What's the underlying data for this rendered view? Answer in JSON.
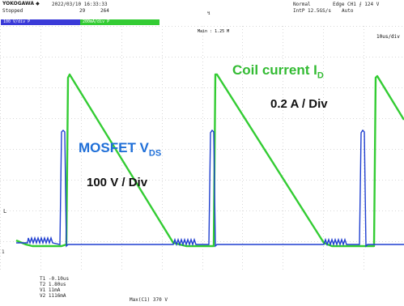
{
  "header": {
    "brand": "YOKOGAWA ◆",
    "datetime": "2022/03/10 16:33:33",
    "status": "Stopped",
    "counter_a": "29",
    "counter_b": "264",
    "trigger_mode": "Normal",
    "sample_rate": "IntP 12.5GS/s",
    "sample_mode": "Auto",
    "trigger_info": "Edge CH1 ⨍ 124 V",
    "main_label": "Main : 1.25 M",
    "timebase": "10us/div"
  },
  "channels": [
    {
      "name": "CH1",
      "tag": "100 V/div  P",
      "color": "#3a3ad8"
    },
    {
      "name": "CH2",
      "tag": "200mA/div  P",
      "color": "#33cc33"
    }
  ],
  "annotations": {
    "coil_label": "Coil current I",
    "coil_sub": "D",
    "coil_scale": "0.2 A / Div",
    "mosfet_label": "MOSFET V",
    "mosfet_sub": "DS",
    "mosfet_scale": "100 V / Div"
  },
  "left_markers": {
    "level": "L",
    "ground": "1"
  },
  "cursors": [
    {
      "label": "T1",
      "value": "-0.10us"
    },
    {
      "label": "T2",
      "value": "1.80us"
    },
    {
      "label": "V1",
      "value": "11mA"
    },
    {
      "label": "V2",
      "value": "1116mA"
    }
  ],
  "measurement": "Max(C1)  370 V",
  "colors": {
    "mosfet": "#1f4fd8",
    "coil": "#33cc33",
    "grid": "#dddddd",
    "text_green": "#33bb33",
    "text_blue": "#1f6fd8"
  }
}
